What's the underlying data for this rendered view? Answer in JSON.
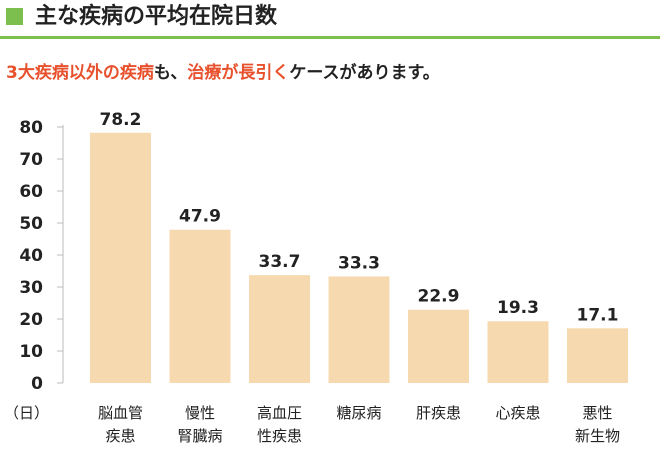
{
  "header": {
    "title": "主な疾病の平均在院日数",
    "marker_color": "#7cbf4e",
    "rule_color": "#7cbf4e"
  },
  "subtitle": {
    "highlight_1": "3大疾病以外の疾病",
    "plain_1": "も、",
    "highlight_2": "治療が長引く",
    "plain_2": "ケースがあります。",
    "highlight_color": "#e8512d",
    "text_color": "#222222"
  },
  "chart_data": {
    "type": "bar",
    "categories": [
      [
        "脳血管",
        "疾患"
      ],
      [
        "慢性",
        "腎臓病"
      ],
      [
        "高血圧",
        "性疾患"
      ],
      [
        "糖尿病"
      ],
      [
        "肝疾患"
      ],
      [
        "心疾患"
      ],
      [
        "悪性",
        "新生物"
      ]
    ],
    "values": [
      78.2,
      47.9,
      33.7,
      33.3,
      22.9,
      19.3,
      17.1
    ],
    "value_labels": [
      "78.2",
      "47.9",
      "33.7",
      "33.3",
      "22.9",
      "19.3",
      "17.1"
    ],
    "ylim": [
      0,
      80
    ],
    "yticks": [
      0,
      10,
      20,
      30,
      40,
      50,
      60,
      70,
      80
    ],
    "unit_label": "（日）",
    "bar_color": "#f7d9b0",
    "axis_color": "#bbbbbb",
    "grid": false
  }
}
